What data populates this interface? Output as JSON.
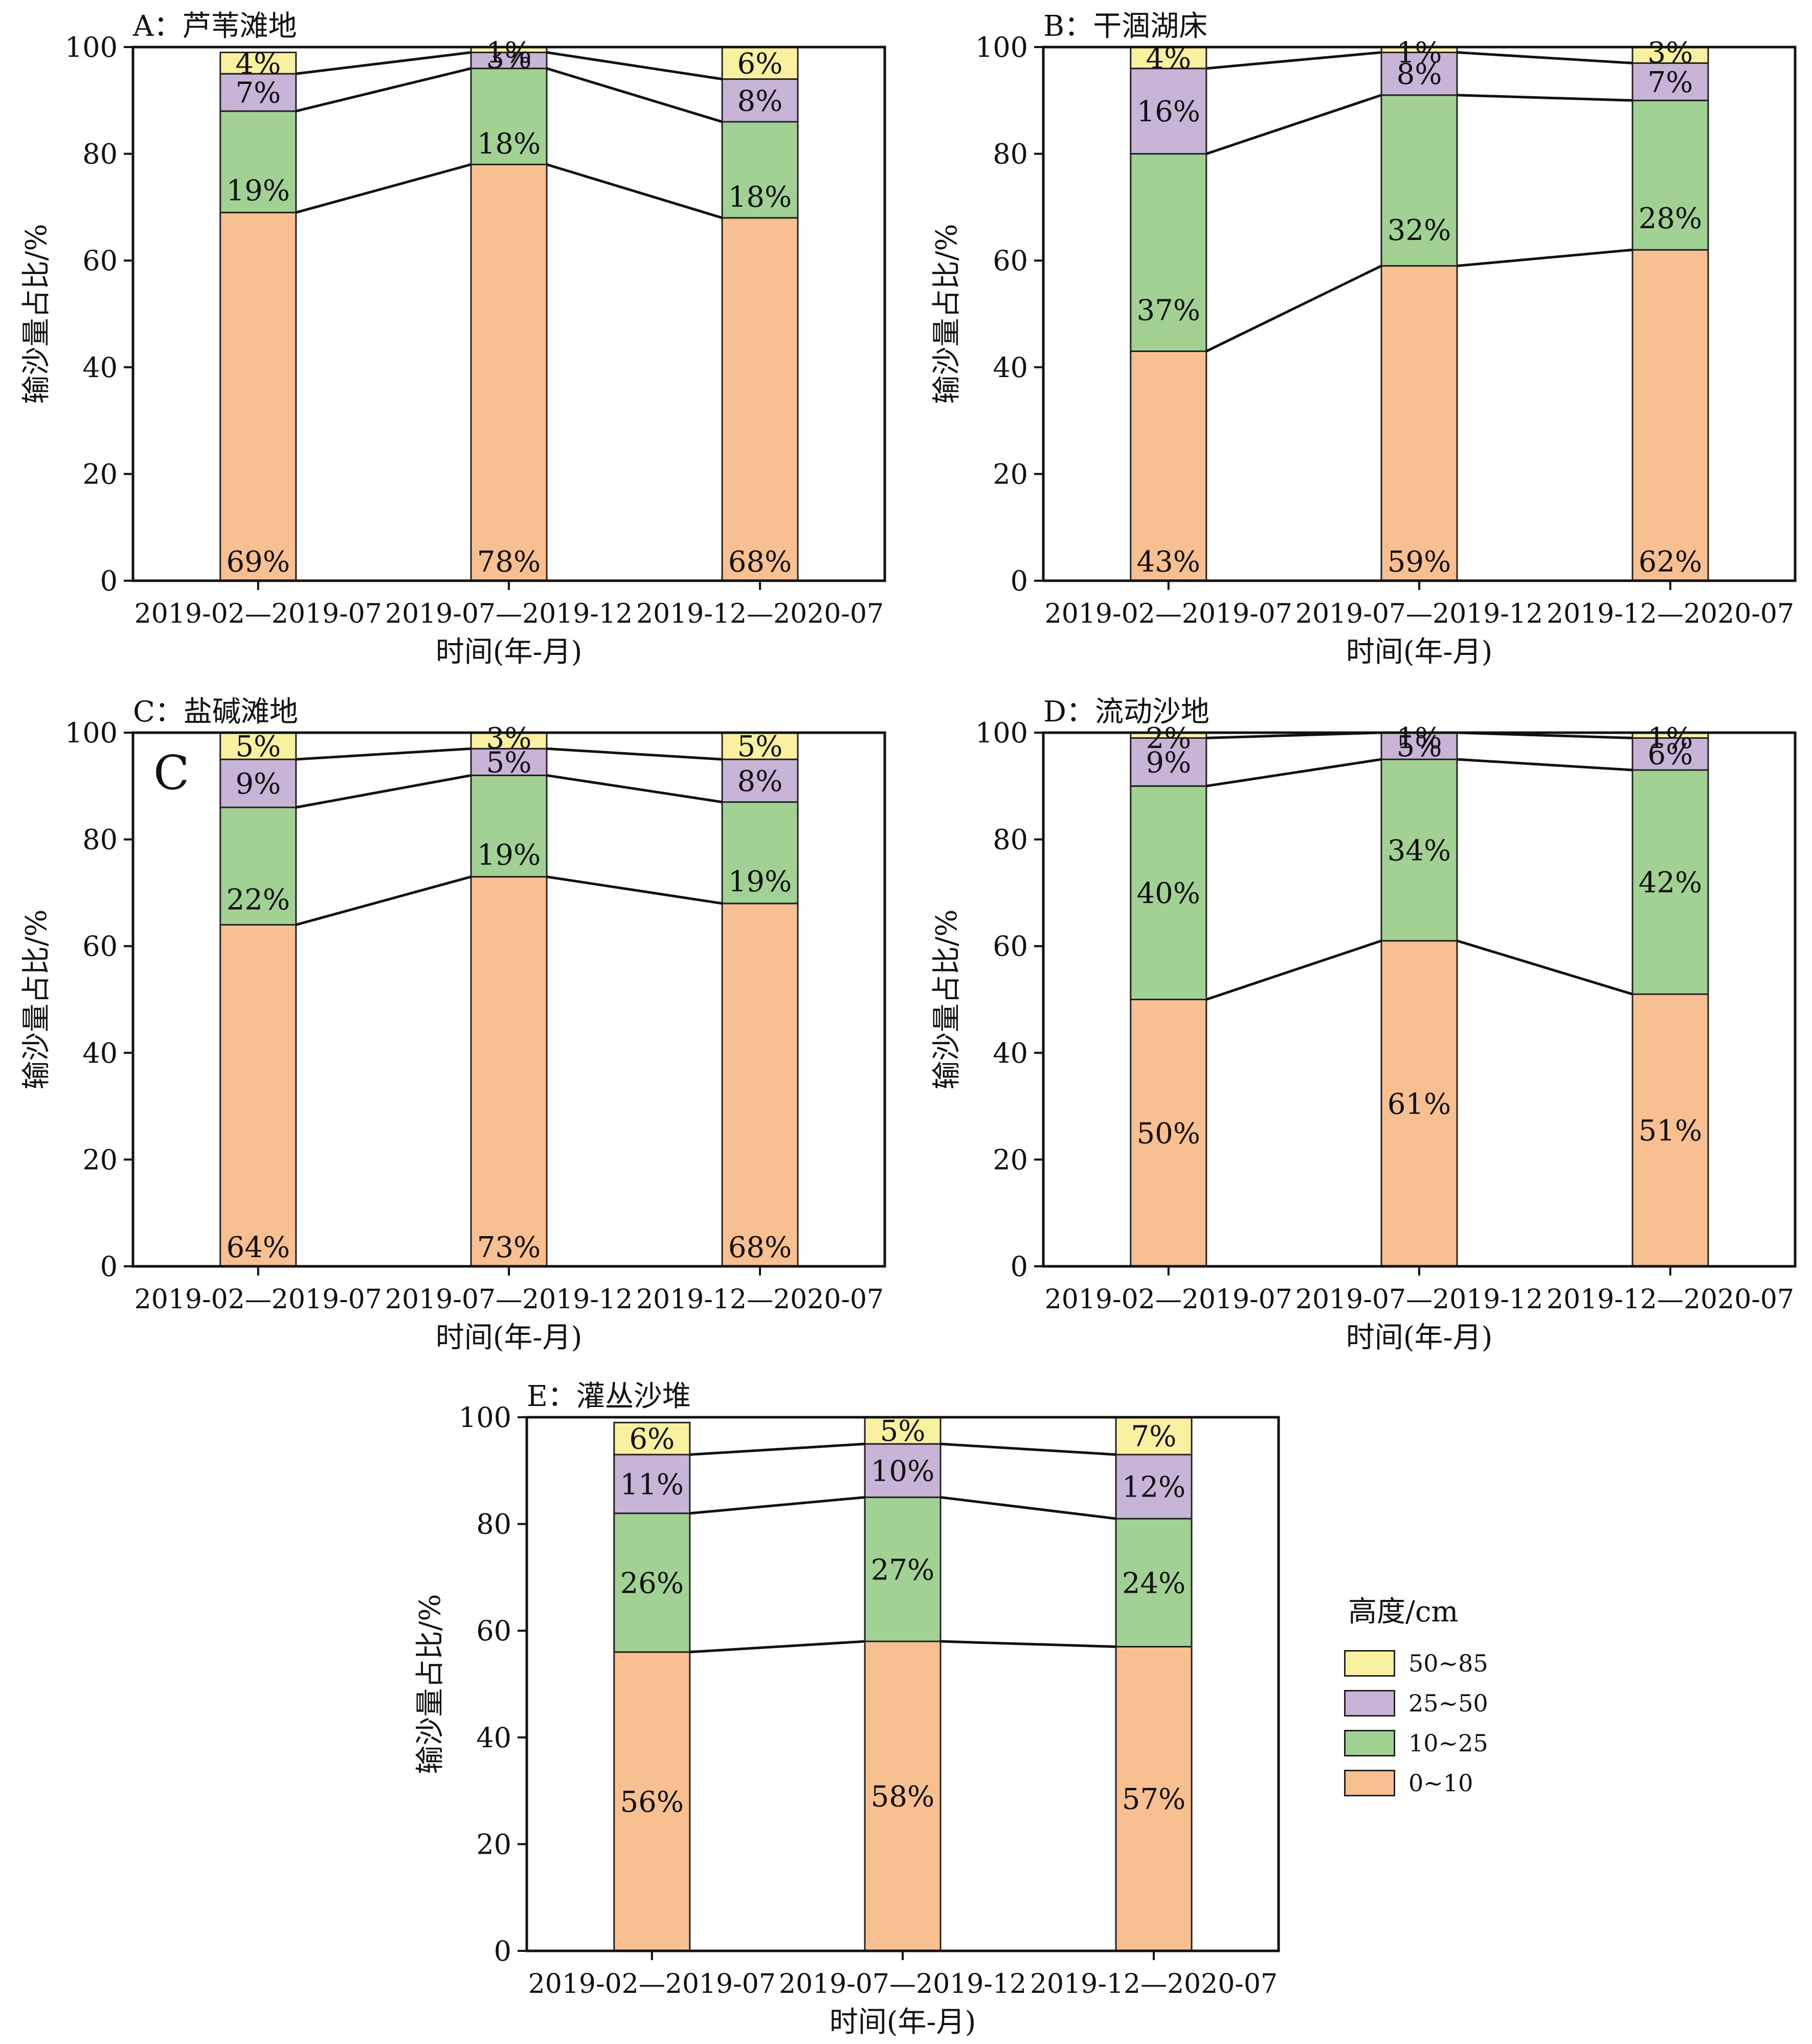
{
  "legend": {
    "title": "高度/cm",
    "items": [
      {
        "label": "50~85",
        "color": "#F9F1A0"
      },
      {
        "label": "25~50",
        "color": "#C8B4D6"
      },
      {
        "label": "10~25",
        "color": "#A1D193"
      },
      {
        "label": "0~10",
        "color": "#F8C090"
      }
    ]
  },
  "chart_data": [
    {
      "type": "bar",
      "stacked": true,
      "title": "A：芦苇滩地",
      "xlabel": "时间(年-月)",
      "ylabel": "输沙量占比/%",
      "ylim": [
        0,
        100
      ],
      "yticks": [
        0,
        20,
        40,
        60,
        80,
        100
      ],
      "categories": [
        "2019-02—2019-07",
        "2019-07—2019-12",
        "2019-12—2020-07"
      ],
      "series": [
        {
          "name": "0~10",
          "values": [
            69,
            78,
            68
          ],
          "labels": [
            "69%",
            "78%",
            "68%"
          ]
        },
        {
          "name": "10~25",
          "values": [
            19,
            18,
            18
          ],
          "labels": [
            "19%",
            "18%",
            "18%"
          ]
        },
        {
          "name": "25~50",
          "values": [
            7,
            3,
            8
          ],
          "labels": [
            "7%",
            "3%",
            "8%"
          ]
        },
        {
          "name": "50~85",
          "values": [
            4,
            1,
            6
          ],
          "labels": [
            "4%",
            "1%",
            "6%"
          ]
        }
      ]
    },
    {
      "type": "bar",
      "stacked": true,
      "title": "B：干涸湖床",
      "xlabel": "时间(年-月)",
      "ylabel": "输沙量占比/%",
      "ylim": [
        0,
        100
      ],
      "yticks": [
        0,
        20,
        40,
        60,
        80,
        100
      ],
      "categories": [
        "2019-02—2019-07",
        "2019-07—2019-12",
        "2019-12—2020-07"
      ],
      "series": [
        {
          "name": "0~10",
          "values": [
            43,
            59,
            62
          ],
          "labels": [
            "43%",
            "59%",
            "62%"
          ]
        },
        {
          "name": "10~25",
          "values": [
            37,
            32,
            28
          ],
          "labels": [
            "37%",
            "32%",
            "28%"
          ]
        },
        {
          "name": "25~50",
          "values": [
            16,
            8,
            7
          ],
          "labels": [
            "16%",
            "8%",
            "7%"
          ]
        },
        {
          "name": "50~85",
          "values": [
            4,
            1,
            3
          ],
          "labels": [
            "4%",
            "1%",
            "3%"
          ]
        }
      ]
    },
    {
      "type": "bar",
      "stacked": true,
      "title": "C：盐碱滩地",
      "annotation": "C",
      "xlabel": "时间(年-月)",
      "ylabel": "输沙量占比/%",
      "ylim": [
        0,
        100
      ],
      "yticks": [
        0,
        20,
        40,
        60,
        80,
        100
      ],
      "categories": [
        "2019-02—2019-07",
        "2019-07—2019-12",
        "2019-12—2020-07"
      ],
      "series": [
        {
          "name": "0~10",
          "values": [
            64,
            73,
            68
          ],
          "labels": [
            "64%",
            "73%",
            "68%"
          ]
        },
        {
          "name": "10~25",
          "values": [
            22,
            19,
            19
          ],
          "labels": [
            "22%",
            "19%",
            "19%"
          ]
        },
        {
          "name": "25~50",
          "values": [
            9,
            5,
            8
          ],
          "labels": [
            "9%",
            "5%",
            "8%"
          ]
        },
        {
          "name": "50~85",
          "values": [
            5,
            3,
            5
          ],
          "labels": [
            "5%",
            "3%",
            "5%"
          ]
        }
      ]
    },
    {
      "type": "bar",
      "stacked": true,
      "title": "D：流动沙地",
      "xlabel": "时间(年-月)",
      "ylabel": "输沙量占比/%",
      "ylim": [
        0,
        100
      ],
      "yticks": [
        0,
        20,
        40,
        60,
        80,
        100
      ],
      "categories": [
        "2019-02—2019-07",
        "2019-07—2019-12",
        "2019-12—2020-07"
      ],
      "series": [
        {
          "name": "0~10",
          "values": [
            50,
            61,
            51
          ],
          "labels": [
            "50%",
            "61%",
            "51%"
          ]
        },
        {
          "name": "10~25",
          "values": [
            40,
            34,
            42
          ],
          "labels": [
            "40%",
            "34%",
            "42%"
          ]
        },
        {
          "name": "25~50",
          "values": [
            9,
            5,
            6
          ],
          "labels": [
            "9%",
            "5%",
            "6%"
          ]
        },
        {
          "name": "50~85",
          "values": [
            2,
            1,
            1
          ],
          "labels": [
            "2%",
            "1%",
            "1%"
          ]
        }
      ]
    },
    {
      "type": "bar",
      "stacked": true,
      "title": "E：灌丛沙堆",
      "xlabel": "时间(年-月)",
      "ylabel": "输沙量占比/%",
      "ylim": [
        0,
        100
      ],
      "yticks": [
        0,
        20,
        40,
        60,
        80,
        100
      ],
      "categories": [
        "2019-02—2019-07",
        "2019-07—2019-12",
        "2019-12—2020-07"
      ],
      "series": [
        {
          "name": "0~10",
          "values": [
            56,
            58,
            57
          ],
          "labels": [
            "56%",
            "58%",
            "57%"
          ]
        },
        {
          "name": "10~25",
          "values": [
            26,
            27,
            24
          ],
          "labels": [
            "26%",
            "27%",
            "24%"
          ]
        },
        {
          "name": "25~50",
          "values": [
            11,
            10,
            12
          ],
          "labels": [
            "11%",
            "10%",
            "12%"
          ]
        },
        {
          "name": "50~85",
          "values": [
            6,
            5,
            7
          ],
          "labels": [
            "6%",
            "5%",
            "7%"
          ]
        }
      ]
    }
  ]
}
